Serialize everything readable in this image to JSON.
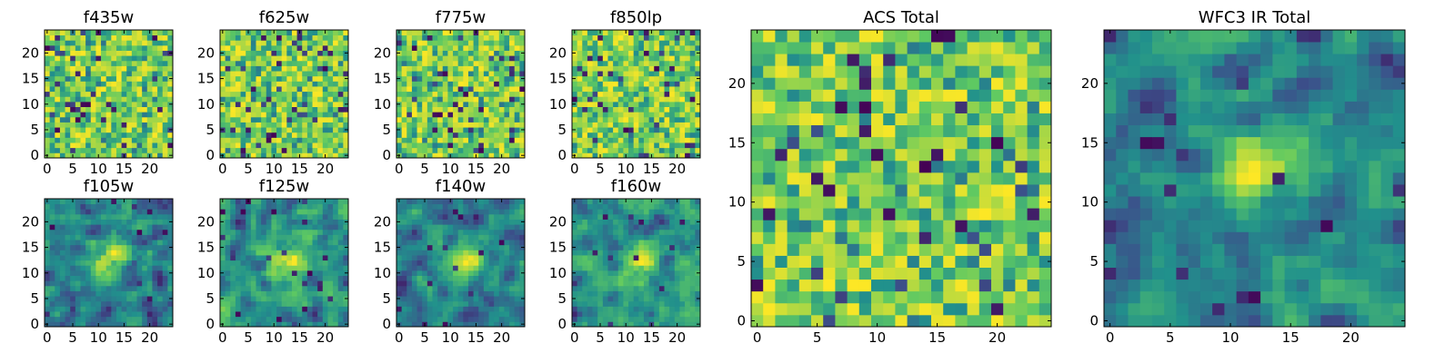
{
  "chart_data": [
    {
      "type": "heatmap",
      "title": "f435w",
      "grid_size": 25,
      "xlim": [
        0,
        24
      ],
      "ylim": [
        0,
        24
      ],
      "x_ticks": [
        "0",
        "5",
        "10",
        "15",
        "20"
      ],
      "y_ticks": [
        "0",
        "5",
        "10",
        "15",
        "20"
      ],
      "pattern": "noise",
      "seed": 11
    },
    {
      "type": "heatmap",
      "title": "f625w",
      "grid_size": 25,
      "xlim": [
        0,
        24
      ],
      "ylim": [
        0,
        24
      ],
      "x_ticks": [
        "0",
        "5",
        "10",
        "15",
        "20"
      ],
      "y_ticks": [
        "0",
        "5",
        "10",
        "15",
        "20"
      ],
      "pattern": "noise",
      "seed": 23
    },
    {
      "type": "heatmap",
      "title": "f775w",
      "grid_size": 25,
      "xlim": [
        0,
        24
      ],
      "ylim": [
        0,
        24
      ],
      "x_ticks": [
        "0",
        "5",
        "10",
        "15",
        "20"
      ],
      "y_ticks": [
        "0",
        "5",
        "10",
        "15",
        "20"
      ],
      "pattern": "noise",
      "seed": 37
    },
    {
      "type": "heatmap",
      "title": "f850lp",
      "grid_size": 25,
      "xlim": [
        0,
        24
      ],
      "ylim": [
        0,
        24
      ],
      "x_ticks": [
        "0",
        "5",
        "10",
        "15",
        "20"
      ],
      "y_ticks": [
        "0",
        "5",
        "10",
        "15",
        "20"
      ],
      "pattern": "noise",
      "seed": 41
    },
    {
      "type": "heatmap",
      "title": "f105w",
      "grid_size": 25,
      "xlim": [
        0,
        24
      ],
      "ylim": [
        0,
        24
      ],
      "x_ticks": [
        "0",
        "5",
        "10",
        "15",
        "20"
      ],
      "y_ticks": [
        "0",
        "5",
        "10",
        "15",
        "20"
      ],
      "pattern": "smooth",
      "seed": 53
    },
    {
      "type": "heatmap",
      "title": "f125w",
      "grid_size": 25,
      "xlim": [
        0,
        24
      ],
      "ylim": [
        0,
        24
      ],
      "x_ticks": [
        "0",
        "5",
        "10",
        "15",
        "20"
      ],
      "y_ticks": [
        "0",
        "5",
        "10",
        "15",
        "20"
      ],
      "pattern": "smooth",
      "seed": 67
    },
    {
      "type": "heatmap",
      "title": "f140w",
      "grid_size": 25,
      "xlim": [
        0,
        24
      ],
      "ylim": [
        0,
        24
      ],
      "x_ticks": [
        "0",
        "5",
        "10",
        "15",
        "20"
      ],
      "y_ticks": [
        "0",
        "5",
        "10",
        "15",
        "20"
      ],
      "pattern": "smooth",
      "seed": 79
    },
    {
      "type": "heatmap",
      "title": "f160w",
      "grid_size": 25,
      "xlim": [
        0,
        24
      ],
      "ylim": [
        0,
        24
      ],
      "x_ticks": [
        "0",
        "5",
        "10",
        "15",
        "20"
      ],
      "y_ticks": [
        "0",
        "5",
        "10",
        "15",
        "20"
      ],
      "pattern": "smooth",
      "seed": 83
    },
    {
      "type": "heatmap",
      "title": "ACS Total",
      "grid_size": 25,
      "xlim": [
        0,
        24
      ],
      "ylim": [
        0,
        24
      ],
      "x_ticks": [
        "0",
        "5",
        "10",
        "15",
        "20"
      ],
      "y_ticks": [
        "0",
        "5",
        "10",
        "15",
        "20"
      ],
      "pattern": "noise",
      "seed": 97
    },
    {
      "type": "heatmap",
      "title": "WFC3 IR Total",
      "grid_size": 25,
      "xlim": [
        0,
        24
      ],
      "ylim": [
        0,
        24
      ],
      "x_ticks": [
        "0",
        "5",
        "10",
        "15",
        "20"
      ],
      "y_ticks": [
        "0",
        "5",
        "10",
        "15",
        "20"
      ],
      "pattern": "smooth",
      "seed": 101
    }
  ],
  "colormap": [
    "#440154",
    "#3b528b",
    "#21918c",
    "#5ec962",
    "#fde725"
  ]
}
